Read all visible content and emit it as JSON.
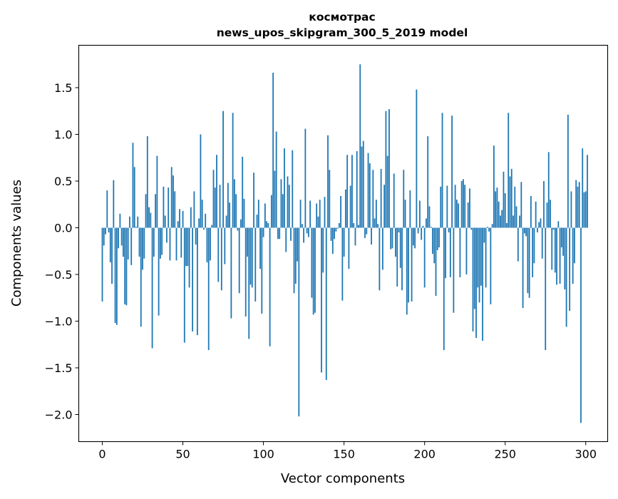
{
  "chart_data": {
    "type": "bar",
    "title": "космотрас",
    "subtitle": "news_upos_skipgram_300_5_2019 model",
    "xlabel": "Vector components",
    "ylabel": "Components values",
    "xlim": [
      -14.6,
      313.6
    ],
    "ylim": [
      -2.29,
      1.954
    ],
    "xticks": [
      0,
      50,
      100,
      150,
      200,
      250,
      300
    ],
    "xtick_labels": [
      "0",
      "50",
      "100",
      "150",
      "200",
      "250",
      "300"
    ],
    "yticks": [
      -2.0,
      -1.5,
      -1.0,
      -0.5,
      0.0,
      0.5,
      1.0,
      1.5
    ],
    "ytick_labels": [
      "−2.0",
      "−1.5",
      "−1.0",
      "−0.5",
      "0.0",
      "0.5",
      "1.0",
      "1.5"
    ],
    "grid": false,
    "bar_color": "#1f77b4",
    "values": [
      -0.79,
      -0.19,
      -0.07,
      0.4,
      -0.05,
      -0.37,
      -0.6,
      0.51,
      -1.02,
      -1.04,
      -0.22,
      0.15,
      -0.19,
      -0.31,
      -0.82,
      -0.83,
      -0.34,
      0.12,
      -0.4,
      0.91,
      0.65,
      0.01,
      0.12,
      -0.31,
      -1.06,
      -0.45,
      -0.33,
      0.36,
      0.98,
      0.22,
      0.16,
      -1.29,
      -0.31,
      0.36,
      0.77,
      -0.94,
      -0.33,
      -0.29,
      0.44,
      0.13,
      -0.16,
      0.43,
      -0.35,
      0.65,
      0.56,
      0.39,
      -0.35,
      0.07,
      0.2,
      -0.32,
      0.18,
      -1.23,
      -0.41,
      -0.41,
      -0.64,
      0.22,
      -1.11,
      0.39,
      -0.18,
      -1.15,
      0.1,
      1.0,
      0.3,
      -0.02,
      0.15,
      -0.37,
      -1.31,
      -0.35,
      0.03,
      0.62,
      0.43,
      0.78,
      -0.58,
      0.46,
      -0.67,
      1.25,
      -0.39,
      0.13,
      0.48,
      0.27,
      -0.97,
      1.23,
      0.52,
      0.36,
      -0.03,
      -0.7,
      0.09,
      0.76,
      0.31,
      -0.95,
      -0.31,
      -1.19,
      -0.61,
      -0.64,
      0.59,
      -0.79,
      0.14,
      0.3,
      -0.44,
      -0.92,
      -0.1,
      0.26,
      0.07,
      0.05,
      -1.27,
      0.35,
      1.66,
      0.61,
      1.03,
      -0.12,
      -0.12,
      0.52,
      0.36,
      0.85,
      -0.26,
      0.55,
      0.46,
      -0.14,
      0.83,
      -0.7,
      -0.6,
      -0.36,
      -2.02,
      0.3,
      0.04,
      -0.16,
      1.06,
      -0.06,
      -0.1,
      0.29,
      -0.75,
      -0.93,
      -0.91,
      0.26,
      0.12,
      0.3,
      -1.55,
      -0.48,
      0.33,
      -1.63,
      0.99,
      0.62,
      -0.14,
      -0.28,
      -0.12,
      -0.04,
      -0.01,
      0.05,
      0.34,
      -0.78,
      -0.31,
      0.41,
      0.78,
      -0.44,
      0.45,
      0.78,
      0.05,
      -0.19,
      0.82,
      0.03,
      1.75,
      0.87,
      0.93,
      -0.11,
      -0.07,
      0.8,
      0.69,
      -0.18,
      0.62,
      0.1,
      0.3,
      0.04,
      -0.67,
      0.63,
      -0.45,
      0.46,
      1.25,
      0.77,
      1.27,
      -0.23,
      -0.22,
      0.58,
      -0.31,
      -0.63,
      -0.05,
      -0.43,
      -0.67,
      0.62,
      0.3,
      -0.93,
      -0.8,
      0.4,
      -0.79,
      -0.19,
      -0.22,
      1.48,
      -0.06,
      0.29,
      -0.13,
      0.02,
      -0.64,
      0.1,
      0.98,
      0.23,
      0.01,
      -0.28,
      -0.38,
      -0.73,
      -0.24,
      -0.21,
      0.44,
      1.23,
      -1.31,
      -0.54,
      0.45,
      -0.05,
      -0.53,
      1.2,
      -0.91,
      0.46,
      0.3,
      0.26,
      -0.53,
      0.5,
      0.52,
      0.46,
      -0.5,
      0.27,
      0.42,
      -0.02,
      -1.11,
      -0.87,
      -1.18,
      -0.64,
      -0.8,
      -0.62,
      -1.21,
      -0.16,
      -0.64,
      0.01,
      -0.04,
      -0.82,
      0.04,
      0.88,
      0.39,
      0.43,
      0.28,
      0.13,
      0.19,
      0.6,
      0.37,
      0.05,
      1.23,
      0.55,
      0.63,
      0.13,
      0.44,
      0.23,
      -0.36,
      0.13,
      0.49,
      -0.86,
      -0.06,
      -0.09,
      -0.7,
      -0.75,
      0.34,
      -0.53,
      -0.38,
      0.28,
      -0.05,
      0.06,
      0.1,
      -0.33,
      0.5,
      -1.31,
      0.27,
      0.81,
      0.3,
      -0.45,
      -0.02,
      -0.48,
      -0.61,
      0.07,
      -0.6,
      -0.21,
      -0.3,
      -0.66,
      -1.06,
      1.21,
      -0.89,
      0.39,
      -0.6,
      -0.38,
      0.51,
      0.44,
      0.49,
      -2.09,
      0.85,
      0.38,
      0.39,
      0.78
    ]
  }
}
